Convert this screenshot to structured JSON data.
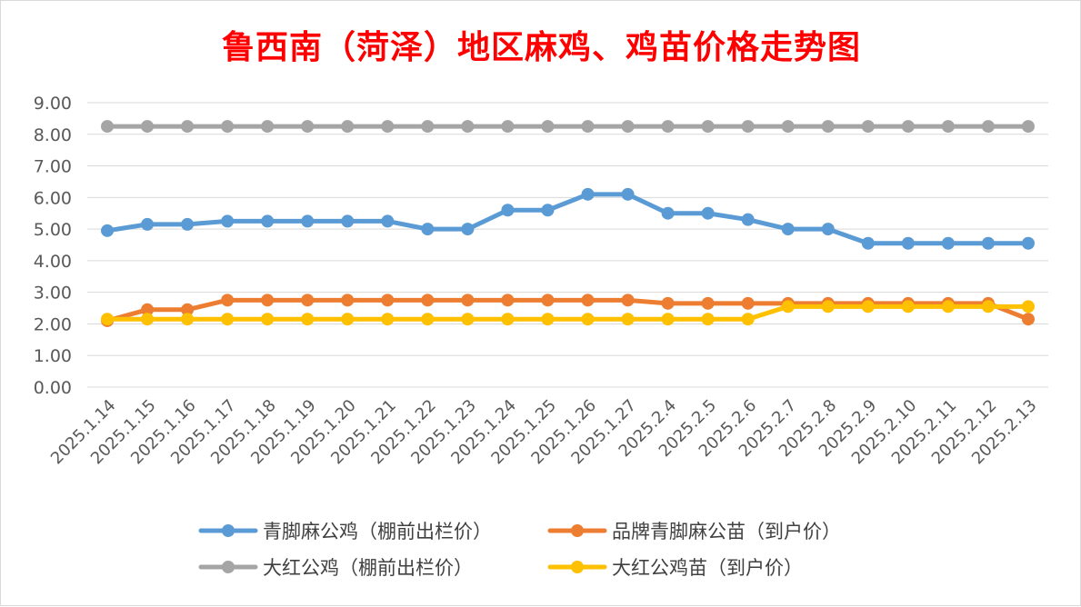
{
  "chart_data": {
    "type": "line",
    "title": "鲁西南（菏泽）地区麻鸡、鸡苗价格走势图",
    "xlabel": "",
    "ylabel": "",
    "ylim": [
      0,
      9
    ],
    "yticks": [
      "0.00",
      "1.00",
      "2.00",
      "3.00",
      "4.00",
      "5.00",
      "6.00",
      "7.00",
      "8.00",
      "9.00"
    ],
    "grid": true,
    "legend_position": "bottom",
    "categories": [
      "2025.1.14",
      "2025.1.15",
      "2025.1.16",
      "2025.1.17",
      "2025.1.18",
      "2025.1.19",
      "2025.1.20",
      "2025.1.21",
      "2025.1.22",
      "2025.1.23",
      "2025.1.24",
      "2025.1.25",
      "2025.1.26",
      "2025.1.27",
      "2025.2.4",
      "2025.2.5",
      "2025.2.6",
      "2025.2.7",
      "2025.2.8",
      "2025.2.9",
      "2025.2.10",
      "2025.2.11",
      "2025.2.12",
      "2025.2.13"
    ],
    "series": [
      {
        "name": "青脚麻公鸡（棚前出栏价）",
        "color": "#5b9bd5",
        "values": [
          4.95,
          5.15,
          5.15,
          5.25,
          5.25,
          5.25,
          5.25,
          5.25,
          5.0,
          5.0,
          5.6,
          5.6,
          6.1,
          6.1,
          5.5,
          5.5,
          5.3,
          5.0,
          5.0,
          4.55,
          4.55,
          4.55,
          4.55,
          4.55
        ]
      },
      {
        "name": "品牌青脚麻公苗（到户价）",
        "color": "#ed7d31",
        "values": [
          2.1,
          2.45,
          2.45,
          2.75,
          2.75,
          2.75,
          2.75,
          2.75,
          2.75,
          2.75,
          2.75,
          2.75,
          2.75,
          2.75,
          2.65,
          2.65,
          2.65,
          2.65,
          2.65,
          2.65,
          2.65,
          2.65,
          2.65,
          2.15
        ]
      },
      {
        "name": "大红公鸡（棚前出栏价）",
        "color": "#a5a5a5",
        "values": [
          8.25,
          8.25,
          8.25,
          8.25,
          8.25,
          8.25,
          8.25,
          8.25,
          8.25,
          8.25,
          8.25,
          8.25,
          8.25,
          8.25,
          8.25,
          8.25,
          8.25,
          8.25,
          8.25,
          8.25,
          8.25,
          8.25,
          8.25,
          8.25
        ]
      },
      {
        "name": "大红公鸡苗（到户价）",
        "color": "#ffc000",
        "values": [
          2.15,
          2.15,
          2.15,
          2.15,
          2.15,
          2.15,
          2.15,
          2.15,
          2.15,
          2.15,
          2.15,
          2.15,
          2.15,
          2.15,
          2.15,
          2.15,
          2.15,
          2.55,
          2.55,
          2.55,
          2.55,
          2.55,
          2.55,
          2.55
        ]
      }
    ]
  },
  "colors": {
    "title": "#ff0000",
    "gridline": "#d9d9d9",
    "tick_text": "#595959"
  }
}
